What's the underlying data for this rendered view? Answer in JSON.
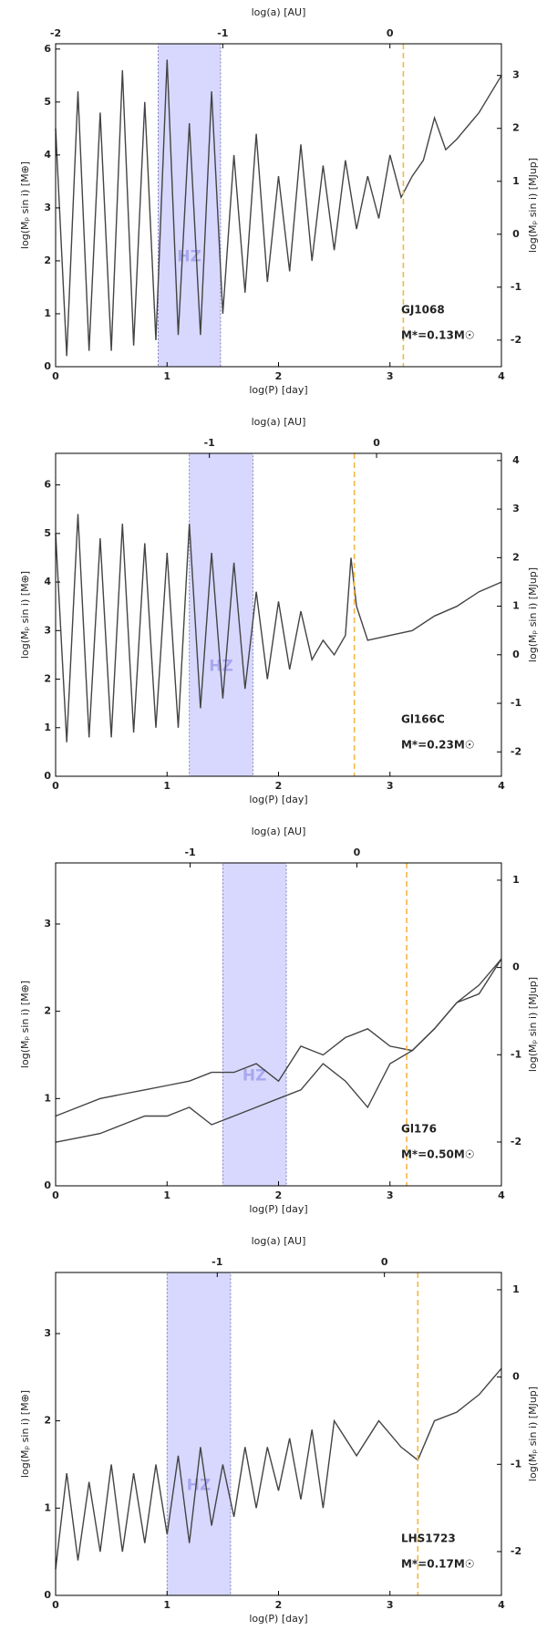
{
  "chart_data": [
    {
      "type": "line",
      "xlabel": "log(P) [day]",
      "x2label": "log(a) [AU]",
      "ylabel": "log(Mₚ sin i) [M⊕]",
      "y2label": "log(Mₚ sin i) [MJup]",
      "xlim": [
        0,
        4
      ],
      "xticks": [
        0,
        1,
        2,
        3,
        4
      ],
      "x2lim": [
        -2,
        0.667
      ],
      "x2ticks": [
        -2,
        -1,
        0
      ],
      "ylim": [
        0,
        6.1
      ],
      "yticks": [
        0,
        1,
        2,
        3,
        4,
        5,
        6
      ],
      "y2lim": [
        -2.502,
        3.598
      ],
      "y2ticks": [
        -2,
        -1,
        0,
        1,
        2,
        3
      ],
      "hz": {
        "label": "HZ",
        "range": [
          0.92,
          1.48
        ],
        "color": "#c8c8ff"
      },
      "vline": 3.12,
      "vline_color": "#f5b642",
      "annotations": [
        "GJ1068",
        "M*=0.13M☉"
      ],
      "x": [
        0,
        0.1,
        0.2,
        0.3,
        0.4,
        0.5,
        0.6,
        0.7,
        0.8,
        0.9,
        1.0,
        1.1,
        1.2,
        1.3,
        1.4,
        1.5,
        1.6,
        1.7,
        1.8,
        1.9,
        2.0,
        2.1,
        2.2,
        2.3,
        2.4,
        2.5,
        2.6,
        2.7,
        2.8,
        2.9,
        3.0,
        3.1,
        3.2,
        3.3,
        3.4,
        3.5,
        3.6,
        3.8,
        4.0
      ],
      "series": [
        {
          "color": "#444444",
          "values": [
            4.5,
            0.2,
            5.2,
            0.3,
            4.8,
            0.3,
            5.6,
            0.4,
            5.0,
            0.5,
            5.8,
            0.6,
            4.6,
            0.6,
            5.2,
            1.0,
            4.0,
            1.4,
            4.4,
            1.6,
            3.6,
            1.8,
            4.2,
            2.0,
            3.8,
            2.2,
            3.9,
            2.6,
            3.6,
            2.8,
            4.0,
            3.2,
            3.6,
            3.9,
            4.7,
            4.1,
            4.3,
            4.8,
            5.5
          ]
        }
      ]
    },
    {
      "type": "line",
      "xlabel": "log(P) [day]",
      "x2label": "log(a) [AU]",
      "ylabel": "log(Mₚ sin i) [M⊕]",
      "y2label": "log(Mₚ sin i) [MJup]",
      "xlim": [
        0,
        4
      ],
      "xticks": [
        0,
        1,
        2,
        3,
        4
      ],
      "x2lim": [
        -1.92,
        0.747
      ],
      "x2ticks": [
        -1,
        0
      ],
      "ylim": [
        0,
        6.65
      ],
      "yticks": [
        0,
        1,
        2,
        3,
        4,
        5,
        6
      ],
      "y2lim": [
        -2.502,
        4.148
      ],
      "y2ticks": [
        -2,
        -1,
        0,
        1,
        2,
        3,
        4
      ],
      "hz": {
        "label": "HZ",
        "range": [
          1.2,
          1.77
        ],
        "color": "#c8c8ff"
      },
      "vline": 2.68,
      "vline_color": "#f5b642",
      "annotations": [
        "Gl166C",
        "M*=0.23M☉"
      ],
      "x": [
        0,
        0.1,
        0.2,
        0.3,
        0.4,
        0.5,
        0.6,
        0.7,
        0.8,
        0.9,
        1.0,
        1.1,
        1.2,
        1.3,
        1.4,
        1.5,
        1.6,
        1.7,
        1.8,
        1.9,
        2.0,
        2.1,
        2.2,
        2.3,
        2.4,
        2.5,
        2.6,
        2.65,
        2.7,
        2.8,
        3.0,
        3.2,
        3.4,
        3.6,
        3.8,
        4.0
      ],
      "series": [
        {
          "color": "#444444",
          "values": [
            5.0,
            0.7,
            5.4,
            0.8,
            4.9,
            0.8,
            5.2,
            0.9,
            4.8,
            1.0,
            4.6,
            1.0,
            5.2,
            1.4,
            4.6,
            1.6,
            4.4,
            1.8,
            3.8,
            2.0,
            3.6,
            2.2,
            3.4,
            2.4,
            2.8,
            2.5,
            2.9,
            4.5,
            3.5,
            2.8,
            2.9,
            3.0,
            3.3,
            3.5,
            3.8,
            4.0
          ]
        }
      ]
    },
    {
      "type": "line",
      "xlabel": "log(P) [day]",
      "x2label": "log(a) [AU]",
      "ylabel": "log(Mₚ sin i) [M⊕]",
      "y2label": "log(Mₚ sin i) [MJup]",
      "xlim": [
        0,
        4
      ],
      "xticks": [
        0,
        1,
        2,
        3,
        4
      ],
      "x2lim": [
        -1.807,
        0.867
      ],
      "x2ticks": [
        -1,
        0
      ],
      "ylim": [
        0,
        3.7
      ],
      "yticks": [
        0,
        1,
        2,
        3
      ],
      "y2lim": [
        -2.502,
        1.198
      ],
      "y2ticks": [
        -2,
        -1,
        0,
        1
      ],
      "hz": {
        "label": "HZ",
        "range": [
          1.5,
          2.07
        ],
        "color": "#c8c8ff"
      },
      "vline": 3.15,
      "vline_color": "#f5b642",
      "annotations": [
        "Gl176",
        "M*=0.50M☉"
      ],
      "x": [
        0,
        0.2,
        0.4,
        0.6,
        0.8,
        1.0,
        1.2,
        1.4,
        1.6,
        1.8,
        2.0,
        2.2,
        2.4,
        2.6,
        2.8,
        3.0,
        3.2,
        3.4,
        3.6,
        3.8,
        4.0
      ],
      "series": [
        {
          "color": "#444444",
          "values": [
            0.8,
            0.9,
            1.0,
            1.05,
            1.1,
            1.15,
            1.2,
            1.3,
            1.3,
            1.4,
            1.2,
            1.6,
            1.5,
            1.7,
            1.8,
            1.6,
            1.55,
            1.8,
            2.1,
            2.3,
            2.6
          ]
        },
        {
          "color": "#444444",
          "values": [
            0.5,
            0.55,
            0.6,
            0.7,
            0.8,
            0.8,
            0.9,
            0.7,
            0.8,
            0.9,
            1.0,
            1.1,
            1.4,
            1.2,
            0.9,
            1.4,
            1.55,
            1.8,
            2.1,
            2.2,
            2.6
          ]
        }
      ]
    },
    {
      "type": "line",
      "xlabel": "log(P) [day]",
      "x2label": "log(a) [AU]",
      "ylabel": "log(Mₚ sin i) [M⊕]",
      "y2label": "log(Mₚ sin i) [MJup]",
      "xlim": [
        0,
        4
      ],
      "xticks": [
        0,
        1,
        2,
        3,
        4
      ],
      "x2lim": [
        -1.967,
        0.7
      ],
      "x2ticks": [
        -1,
        0
      ],
      "ylim": [
        0,
        3.7
      ],
      "yticks": [
        0,
        1,
        2,
        3
      ],
      "y2lim": [
        -2.502,
        1.198
      ],
      "y2ticks": [
        -2,
        -1,
        0,
        1
      ],
      "hz": {
        "label": "HZ",
        "range": [
          1.0,
          1.57
        ],
        "color": "#c8c8ff"
      },
      "vline": 3.25,
      "vline_color": "#f5b642",
      "annotations": [
        "LHS1723",
        "M*=0.17M☉"
      ],
      "x": [
        0,
        0.1,
        0.2,
        0.3,
        0.4,
        0.5,
        0.6,
        0.7,
        0.8,
        0.9,
        1.0,
        1.1,
        1.2,
        1.3,
        1.4,
        1.5,
        1.6,
        1.7,
        1.8,
        1.9,
        2.0,
        2.1,
        2.2,
        2.3,
        2.4,
        2.5,
        2.7,
        2.9,
        3.1,
        3.25,
        3.4,
        3.6,
        3.8,
        4.0
      ],
      "series": [
        {
          "color": "#444444",
          "values": [
            0.3,
            1.4,
            0.4,
            1.3,
            0.5,
            1.5,
            0.5,
            1.4,
            0.6,
            1.5,
            0.7,
            1.6,
            0.6,
            1.7,
            0.8,
            1.5,
            0.9,
            1.7,
            1.0,
            1.7,
            1.2,
            1.8,
            1.1,
            1.9,
            1.0,
            2.0,
            1.6,
            2.0,
            1.7,
            1.55,
            2.0,
            2.1,
            2.3,
            2.6
          ]
        }
      ]
    }
  ]
}
